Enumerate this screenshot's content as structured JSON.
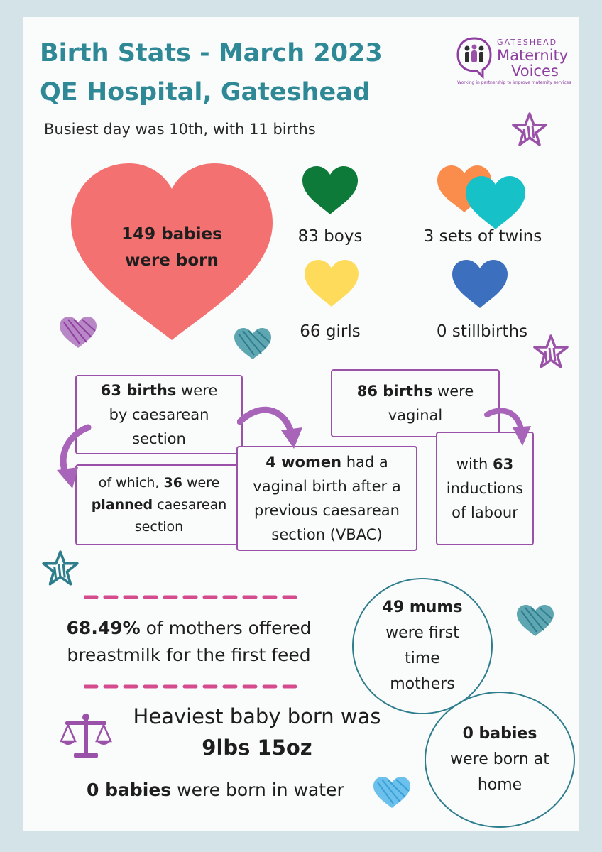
{
  "header": {
    "title_line1": "Birth Stats - March 2023",
    "title_line2": "QE Hospital, Gateshead",
    "subtitle": "Busiest day was 10th, with 11 births"
  },
  "logo": {
    "top": "GATESHEAD",
    "line1": "Maternity",
    "line2": "Voices",
    "tagline": "Working in partnership to improve maternity services"
  },
  "babies": {
    "count_bold": "149 babies",
    "count_rest": "were born"
  },
  "stats": {
    "boys": "83 boys",
    "girls": "66 girls",
    "twins": "3 sets of twins",
    "stillbirths": "0 stillbirths"
  },
  "births": {
    "caesarean_bold": "63 births",
    "caesarean_rest1": " were",
    "caesarean_rest2": "by caesarean",
    "caesarean_rest3": "section",
    "planned_pre": "of which, ",
    "planned_num": "36",
    "planned_mid": " were",
    "planned_bold": "planned",
    "planned_rest": " caesarean",
    "planned_end": "section",
    "vbac_bold": "4 women",
    "vbac_rest1": " had a",
    "vbac_rest2": "vaginal birth after a",
    "vbac_rest3": "previous caesarean",
    "vbac_rest4": "section (VBAC)",
    "vaginal_bold": "86 births",
    "vaginal_rest1": " were",
    "vaginal_rest2": "vaginal",
    "induction_pre": "with ",
    "induction_num": "63",
    "induction_rest1": "inductions",
    "induction_rest2": "of labour"
  },
  "feeding": {
    "pct": "68.49%",
    "rest1": " of mothers offered",
    "rest2": "breastmilk for the first feed"
  },
  "first_time": {
    "bold": "49 mums",
    "l2": "were first",
    "l3": "time",
    "l4": "mothers"
  },
  "home": {
    "bold": "0 babies",
    "l2": "were born at",
    "l3": "home"
  },
  "weight": {
    "label": "Heaviest baby born was",
    "value": "9lbs 15oz"
  },
  "water": {
    "bold": "0 babies",
    "rest": " were born in water"
  },
  "colors": {
    "title": "#2f8896",
    "big_heart": "#f47171",
    "boys_heart": "#0e7a3a",
    "girls_heart": "#fedb5b",
    "twins_heart_a": "#fa8c4c",
    "twins_heart_b": "#16c1c8",
    "stillbirth_heart": "#3c6fbe",
    "box_border": "#9a52a8",
    "accent_purple": "#9a52a8",
    "accent_teal": "#2e7d8c",
    "dash_pink": "#d44b8e"
  }
}
